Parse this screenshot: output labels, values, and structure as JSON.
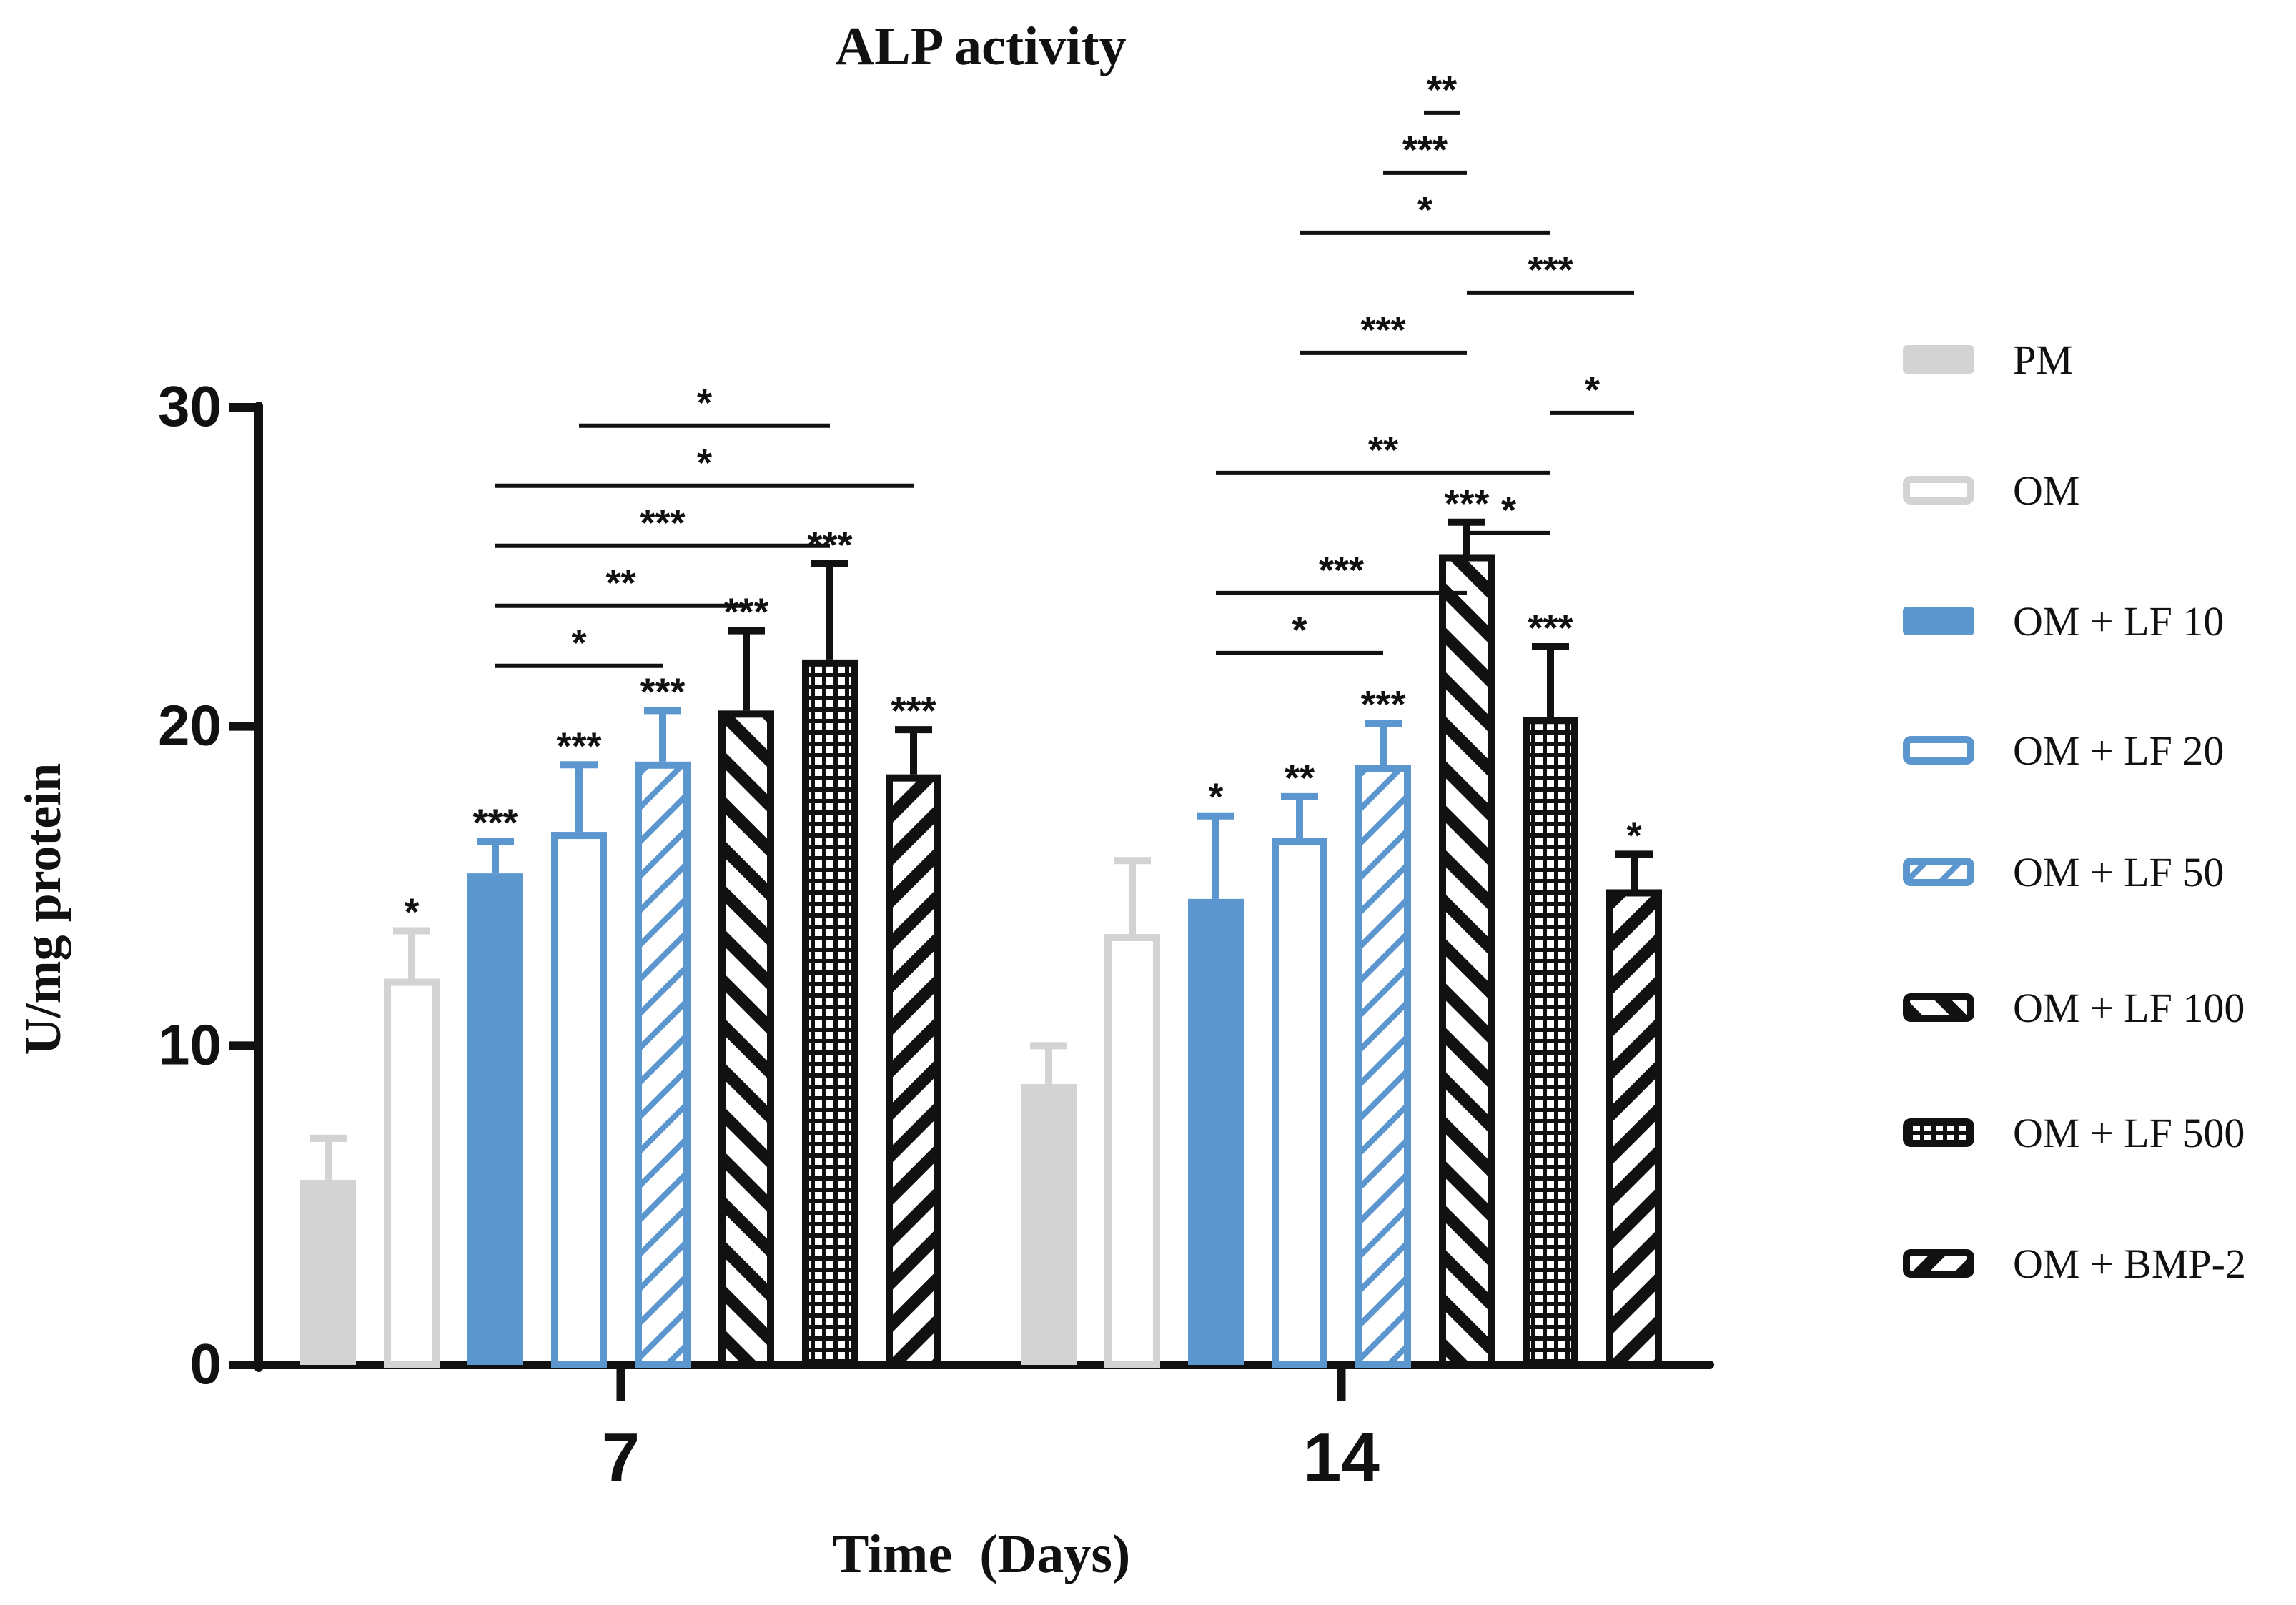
{
  "chart_data": {
    "type": "bar",
    "title": "ALP activity",
    "xlabel": "Time  (Days)",
    "ylabel": "U/mg protein",
    "ylim": [
      0,
      30
    ],
    "yticks": [
      "0",
      "10",
      "20",
      "30"
    ],
    "categories": [
      "7",
      "14"
    ],
    "legend_position": "right",
    "series": [
      {
        "name": "PM",
        "style": "solid",
        "color": "#d3d3d3",
        "values": [
          5.8,
          8.8
        ],
        "errors": [
          1.3,
          1.2
        ],
        "sig": [
          "",
          ""
        ]
      },
      {
        "name": "OM",
        "style": "open",
        "color": "#d3d3d3",
        "values": [
          12.1,
          13.5
        ],
        "errors": [
          1.5,
          2.3
        ],
        "sig": [
          "*",
          ""
        ]
      },
      {
        "name": "OM + LF 10",
        "style": "solid",
        "color": "#5b96cf",
        "values": [
          15.4,
          14.6
        ],
        "errors": [
          1.0,
          2.6
        ],
        "sig": [
          "***",
          "*"
        ]
      },
      {
        "name": "OM + LF 20",
        "style": "open",
        "color": "#5b96cf",
        "values": [
          16.7,
          16.5
        ],
        "errors": [
          2.1,
          1.3
        ],
        "sig": [
          "***",
          "**"
        ]
      },
      {
        "name": "OM + LF 50",
        "style": "hatch-fwd",
        "color": "#5b96cf",
        "values": [
          18.9,
          18.8
        ],
        "errors": [
          1.6,
          1.3
        ],
        "sig": [
          "***",
          "***"
        ]
      },
      {
        "name": "OM + LF 100",
        "style": "hatch-back",
        "color": "#111111",
        "values": [
          20.5,
          25.4
        ],
        "errors": [
          2.5,
          1.0
        ],
        "sig": [
          "***",
          "***"
        ]
      },
      {
        "name": "OM + LF 500",
        "style": "grid",
        "color": "#111111",
        "values": [
          22.1,
          20.3
        ],
        "errors": [
          3.0,
          2.2
        ],
        "sig": [
          "***",
          "***"
        ]
      },
      {
        "name": "OM + BMP-2",
        "style": "hatch-fwd-dense",
        "color": "#111111",
        "values": [
          18.5,
          14.9
        ],
        "errors": [
          1.4,
          1.1
        ],
        "sig": [
          "***",
          "*"
        ]
      }
    ],
    "comparisons": [
      {
        "group": 0,
        "from": 2,
        "to": 4,
        "label": "*"
      },
      {
        "group": 0,
        "from": 2,
        "to": 5,
        "label": "**"
      },
      {
        "group": 0,
        "from": 2,
        "to": 6,
        "label": "***"
      },
      {
        "group": 0,
        "from": 2,
        "to": 7,
        "label": "*"
      },
      {
        "group": 0,
        "from": 3,
        "to": 6,
        "label": "*"
      },
      {
        "group": 1,
        "from": 2,
        "to": 4,
        "label": "*"
      },
      {
        "group": 1,
        "from": 2,
        "to": 5,
        "label": "***"
      },
      {
        "group": 1,
        "from": 5,
        "to": 6,
        "label": "*"
      },
      {
        "group": 1,
        "from": 2,
        "to": 6,
        "label": "**"
      },
      {
        "group": 1,
        "from": 6,
        "to": 7,
        "label": "*"
      },
      {
        "group": 1,
        "from": 3,
        "to": 5,
        "label": "***"
      },
      {
        "group": 1,
        "from": 5,
        "to": 7,
        "label": "***"
      },
      {
        "group": 1,
        "from": 3,
        "to": 6,
        "label": "*"
      },
      {
        "group": 1,
        "from": 4,
        "to": 5,
        "label": "***"
      },
      {
        "group": 1,
        "from": 5,
        "to": 5,
        "label": "**"
      }
    ]
  }
}
